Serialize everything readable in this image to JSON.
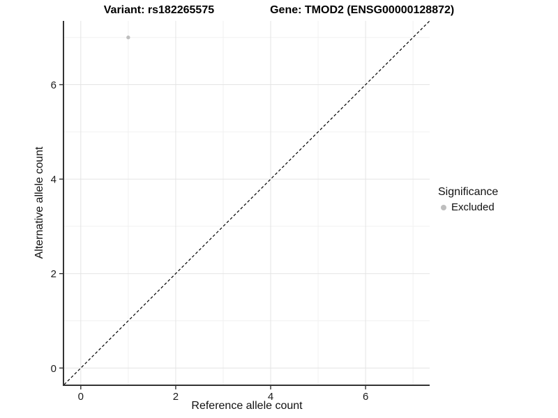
{
  "title": {
    "variant": "Variant: rs182265575",
    "gene": "Gene: TMOD2 (ENSG00000128872)"
  },
  "axes": {
    "x_label": "Reference allele count",
    "y_label": "Alternative allele count"
  },
  "legend": {
    "title": "Significance",
    "entries": [
      {
        "label": "Excluded",
        "color": "#bebebe",
        "marker": "dot-icon"
      }
    ]
  },
  "chart_data": {
    "type": "scatter",
    "title": "Variant: rs182265575   Gene: TMOD2 (ENSG00000128872)",
    "xlabel": "Reference allele count",
    "ylabel": "Alternative allele count",
    "series": [
      {
        "name": "Excluded",
        "color": "#bebebe",
        "points": [
          {
            "x": 1,
            "y": 7
          }
        ]
      }
    ],
    "xlim": [
      -0.35,
      7.35
    ],
    "ylim": [
      -0.35,
      7.35
    ],
    "x_ticks": [
      0,
      2,
      4,
      6
    ],
    "y_ticks": [
      0,
      2,
      4,
      6
    ],
    "major_gridlines": [
      0,
      2,
      4,
      6
    ],
    "minor_gridlines": [
      1,
      3,
      5,
      7
    ],
    "reference_line": {
      "type": "identity",
      "slope": 1,
      "intercept": 0,
      "style": "dashed",
      "color": "#000000"
    },
    "grid": true,
    "legend_position": "right",
    "colors": {
      "background": "#ffffff",
      "major_grid": "#e4e4e4",
      "minor_grid": "#f1f1f1",
      "axis_line": "#333333",
      "tick_label": "#1a1a1a",
      "point": "#bebebe"
    },
    "point_radius_px": 2.7
  }
}
